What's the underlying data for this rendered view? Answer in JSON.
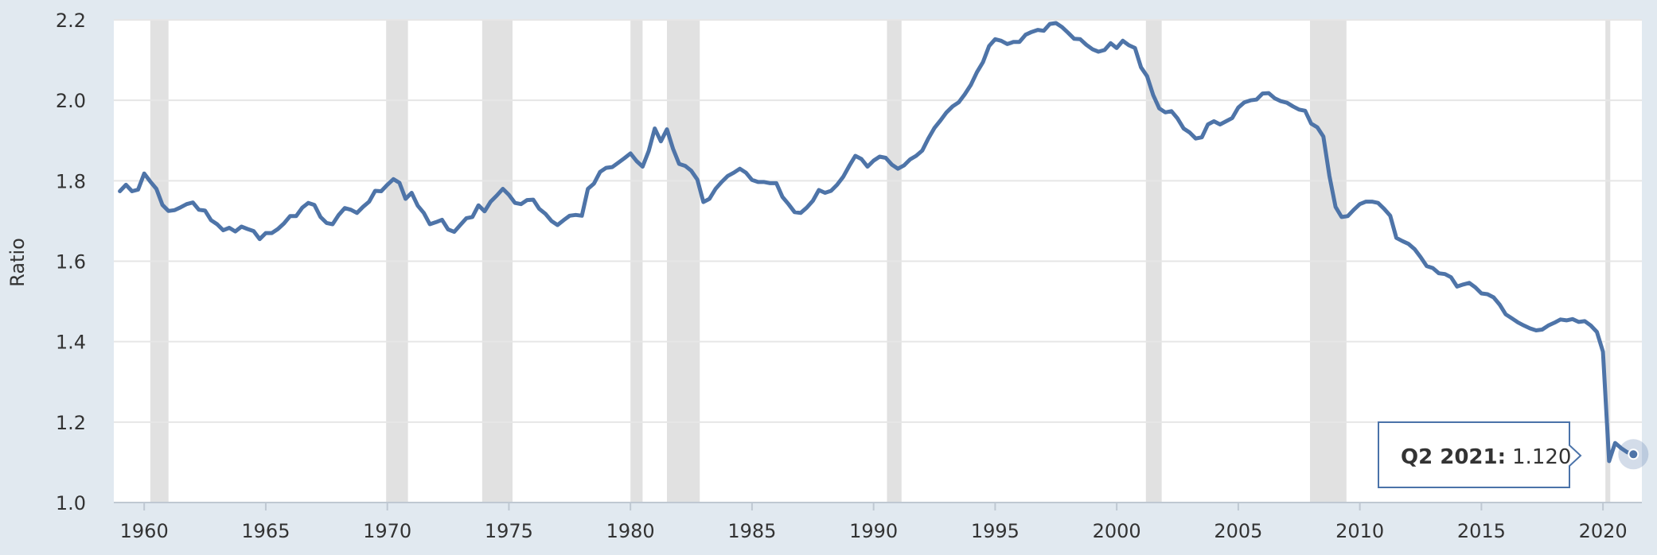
{
  "chart_data": {
    "type": "line",
    "xlabel": "",
    "ylabel": "Ratio",
    "xlim": [
      1958.75,
      2021.6
    ],
    "ylim": [
      1.0,
      2.2
    ],
    "x_ticks": [
      1960,
      1965,
      1970,
      1975,
      1980,
      1985,
      1990,
      1995,
      2000,
      2005,
      2010,
      2015,
      2020
    ],
    "y_ticks": [
      1.0,
      1.2,
      1.4,
      1.6,
      1.8,
      2.0,
      2.2
    ],
    "grid": "horizontal",
    "line_color": "#4e74a8",
    "recessions": [
      [
        1960.25,
        1961.0
      ],
      [
        1969.95,
        1970.85
      ],
      [
        1973.9,
        1975.15
      ],
      [
        1980.0,
        1980.5
      ],
      [
        1981.5,
        1982.85
      ],
      [
        1990.55,
        1991.15
      ],
      [
        2001.2,
        2001.85
      ],
      [
        2007.95,
        2009.45
      ],
      [
        2020.1,
        2020.3
      ]
    ],
    "series": [
      {
        "x": [
          1959.0,
          1959.25,
          1959.5,
          1959.75,
          1960.0,
          1960.25,
          1960.5,
          1960.75,
          1961.0,
          1961.25,
          1961.5,
          1961.75,
          1962.0,
          1962.25,
          1962.5,
          1962.75,
          1963.0,
          1963.25,
          1963.5,
          1963.75,
          1964.0,
          1964.25,
          1964.5,
          1964.75,
          1965.0,
          1965.25,
          1965.5,
          1965.75,
          1966.0,
          1966.25,
          1966.5,
          1966.75,
          1967.0,
          1967.25,
          1967.5,
          1967.75,
          1968.0,
          1968.25,
          1968.5,
          1968.75,
          1969.0,
          1969.25,
          1969.5,
          1969.75,
          1970.0,
          1970.25,
          1970.5,
          1970.75,
          1971.0,
          1971.25,
          1971.5,
          1971.75,
          1972.0,
          1972.25,
          1972.5,
          1972.75,
          1973.0,
          1973.25,
          1973.5,
          1973.75,
          1974.0,
          1974.25,
          1974.5,
          1974.75,
          1975.0,
          1975.25,
          1975.5,
          1975.75,
          1976.0,
          1976.25,
          1976.5,
          1976.75,
          1977.0,
          1977.25,
          1977.5,
          1977.75,
          1978.0,
          1978.25,
          1978.5,
          1978.75,
          1979.0,
          1979.25,
          1979.5,
          1979.75,
          1980.0,
          1980.25,
          1980.5,
          1980.75,
          1981.0,
          1981.25,
          1981.5,
          1981.75,
          1982.0,
          1982.25,
          1982.5,
          1982.75,
          1983.0,
          1983.25,
          1983.5,
          1983.75,
          1984.0,
          1984.25,
          1984.5,
          1984.75,
          1985.0,
          1985.25,
          1985.5,
          1985.75,
          1986.0,
          1986.25,
          1986.5,
          1986.75,
          1987.0,
          1987.25,
          1987.5,
          1987.75,
          1988.0,
          1988.25,
          1988.5,
          1988.75,
          1989.0,
          1989.25,
          1989.5,
          1989.75,
          1990.0,
          1990.25,
          1990.5,
          1990.75,
          1991.0,
          1991.25,
          1991.5,
          1991.75,
          1992.0,
          1992.25,
          1992.5,
          1992.75,
          1993.0,
          1993.25,
          1993.5,
          1993.75,
          1994.0,
          1994.25,
          1994.5,
          1994.75,
          1995.0,
          1995.25,
          1995.5,
          1995.75,
          1996.0,
          1996.25,
          1996.5,
          1996.75,
          1997.0,
          1997.25,
          1997.5,
          1997.75,
          1998.0,
          1998.25,
          1998.5,
          1998.75,
          1999.0,
          1999.25,
          1999.5,
          1999.75,
          2000.0,
          2000.25,
          2000.5,
          2000.75,
          2001.0,
          2001.25,
          2001.5,
          2001.75,
          2002.0,
          2002.25,
          2002.5,
          2002.75,
          2003.0,
          2003.25,
          2003.5,
          2003.75,
          2004.0,
          2004.25,
          2004.5,
          2004.75,
          2005.0,
          2005.25,
          2005.5,
          2005.75,
          2006.0,
          2006.25,
          2006.5,
          2006.75,
          2007.0,
          2007.25,
          2007.5,
          2007.75,
          2008.0,
          2008.25,
          2008.5,
          2008.75,
          2009.0,
          2009.25,
          2009.5,
          2009.75,
          2010.0,
          2010.25,
          2010.5,
          2010.75,
          2011.0,
          2011.25,
          2011.5,
          2011.75,
          2012.0,
          2012.25,
          2012.5,
          2012.75,
          2013.0,
          2013.25,
          2013.5,
          2013.75,
          2014.0,
          2014.25,
          2014.5,
          2014.75,
          2015.0,
          2015.25,
          2015.5,
          2015.75,
          2016.0,
          2016.25,
          2016.5,
          2016.75,
          2017.0,
          2017.25,
          2017.5,
          2017.75,
          2018.0,
          2018.25,
          2018.5,
          2018.75,
          2019.0,
          2019.25,
          2019.5,
          2019.75,
          2020.0,
          2020.25,
          2020.5,
          2020.75,
          2021.0,
          2021.25
        ],
        "values": [
          1.774,
          1.79,
          1.774,
          1.778,
          1.818,
          1.798,
          1.78,
          1.74,
          1.725,
          1.727,
          1.734,
          1.742,
          1.746,
          1.728,
          1.726,
          1.702,
          1.692,
          1.677,
          1.683,
          1.674,
          1.686,
          1.68,
          1.675,
          1.655,
          1.67,
          1.67,
          1.68,
          1.694,
          1.712,
          1.712,
          1.733,
          1.745,
          1.74,
          1.71,
          1.695,
          1.692,
          1.715,
          1.732,
          1.728,
          1.72,
          1.735,
          1.748,
          1.775,
          1.774,
          1.79,
          1.804,
          1.795,
          1.755,
          1.77,
          1.738,
          1.72,
          1.692,
          1.697,
          1.703,
          1.679,
          1.673,
          1.69,
          1.707,
          1.71,
          1.739,
          1.724,
          1.748,
          1.763,
          1.78,
          1.765,
          1.745,
          1.742,
          1.752,
          1.753,
          1.73,
          1.718,
          1.7,
          1.69,
          1.702,
          1.713,
          1.715,
          1.713,
          1.78,
          1.793,
          1.822,
          1.832,
          1.834,
          1.845,
          1.856,
          1.868,
          1.849,
          1.835,
          1.874,
          1.93,
          1.898,
          1.928,
          1.88,
          1.842,
          1.837,
          1.825,
          1.803,
          1.747,
          1.755,
          1.78,
          1.797,
          1.812,
          1.82,
          1.83,
          1.82,
          1.802,
          1.797,
          1.797,
          1.794,
          1.794,
          1.76,
          1.742,
          1.722,
          1.72,
          1.733,
          1.75,
          1.777,
          1.77,
          1.775,
          1.79,
          1.81,
          1.837,
          1.862,
          1.854,
          1.835,
          1.85,
          1.86,
          1.857,
          1.84,
          1.83,
          1.838,
          1.853,
          1.862,
          1.875,
          1.905,
          1.931,
          1.95,
          1.97,
          1.985,
          1.995,
          2.015,
          2.038,
          2.07,
          2.095,
          2.135,
          2.152,
          2.148,
          2.14,
          2.145,
          2.145,
          2.163,
          2.17,
          2.175,
          2.173,
          2.19,
          2.192,
          2.182,
          2.168,
          2.153,
          2.152,
          2.138,
          2.127,
          2.121,
          2.125,
          2.142,
          2.13,
          2.148,
          2.137,
          2.13,
          2.082,
          2.06,
          2.013,
          1.98,
          1.97,
          1.973,
          1.955,
          1.93,
          1.92,
          1.905,
          1.908,
          1.94,
          1.948,
          1.94,
          1.948,
          1.956,
          1.982,
          1.995,
          2.0,
          2.002,
          2.017,
          2.018,
          2.005,
          1.998,
          1.994,
          1.985,
          1.977,
          1.974,
          1.942,
          1.933,
          1.91,
          1.812,
          1.735,
          1.71,
          1.712,
          1.728,
          1.742,
          1.748,
          1.748,
          1.745,
          1.73,
          1.713,
          1.658,
          1.65,
          1.643,
          1.63,
          1.61,
          1.588,
          1.583,
          1.57,
          1.568,
          1.56,
          1.537,
          1.542,
          1.546,
          1.535,
          1.52,
          1.518,
          1.51,
          1.492,
          1.468,
          1.458,
          1.448,
          1.44,
          1.433,
          1.428,
          1.43,
          1.44,
          1.447,
          1.455,
          1.453,
          1.456,
          1.449,
          1.451,
          1.44,
          1.424,
          1.375,
          1.103,
          1.148,
          1.135,
          1.125,
          1.12
        ]
      }
    ],
    "tooltip": {
      "label": "Q2 2021:",
      "value": "1.120"
    }
  }
}
